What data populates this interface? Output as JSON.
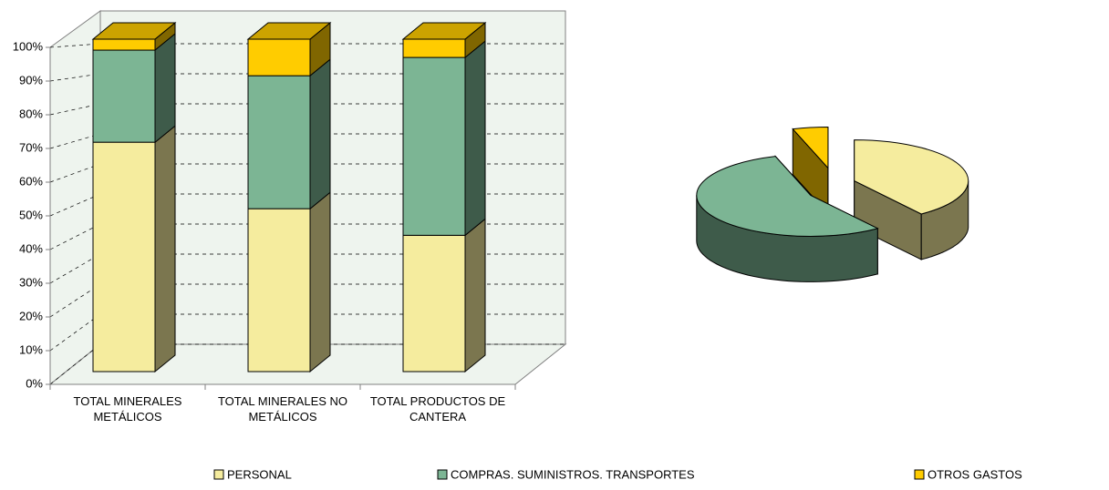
{
  "chart_data": [
    {
      "type": "stacked_bar_3d",
      "categories": [
        "TOTAL MINERALES METÁLICOS",
        "TOTAL MINERALES NO METÁLICOS",
        "TOTAL PRODUCTOS DE CANTERA"
      ],
      "series": [
        {
          "name": "PERSONAL",
          "color": "#f5ec9e",
          "values": [
            69,
            49,
            41
          ]
        },
        {
          "name": "COMPRAS. SUMINISTROS. TRANSPORTES",
          "color": "#7cb594",
          "values": [
            27.7,
            40,
            53.5
          ]
        },
        {
          "name": "OTROS GASTOS",
          "color": "#ffcc00",
          "values": [
            3.3,
            11,
            5.5
          ]
        }
      ],
      "ylim": [
        0,
        100
      ],
      "yticks": [
        {
          "value": 0,
          "label": "0%"
        },
        {
          "value": 10,
          "label": "10%"
        },
        {
          "value": 20,
          "label": "20%"
        },
        {
          "value": 30,
          "label": "30%"
        },
        {
          "value": 40,
          "label": "40%"
        },
        {
          "value": 50,
          "label": "50%"
        },
        {
          "value": 60,
          "label": "60%"
        },
        {
          "value": 70,
          "label": "70%"
        },
        {
          "value": 80,
          "label": "80%"
        },
        {
          "value": 90,
          "label": "90%"
        },
        {
          "value": 100,
          "label": "100%"
        }
      ],
      "grid": true
    },
    {
      "type": "pie_3d",
      "values": [
        40,
        55,
        5
      ],
      "colors": [
        "#f5ec9e",
        "#7cb594",
        "#ffcc00"
      ]
    }
  ]
}
